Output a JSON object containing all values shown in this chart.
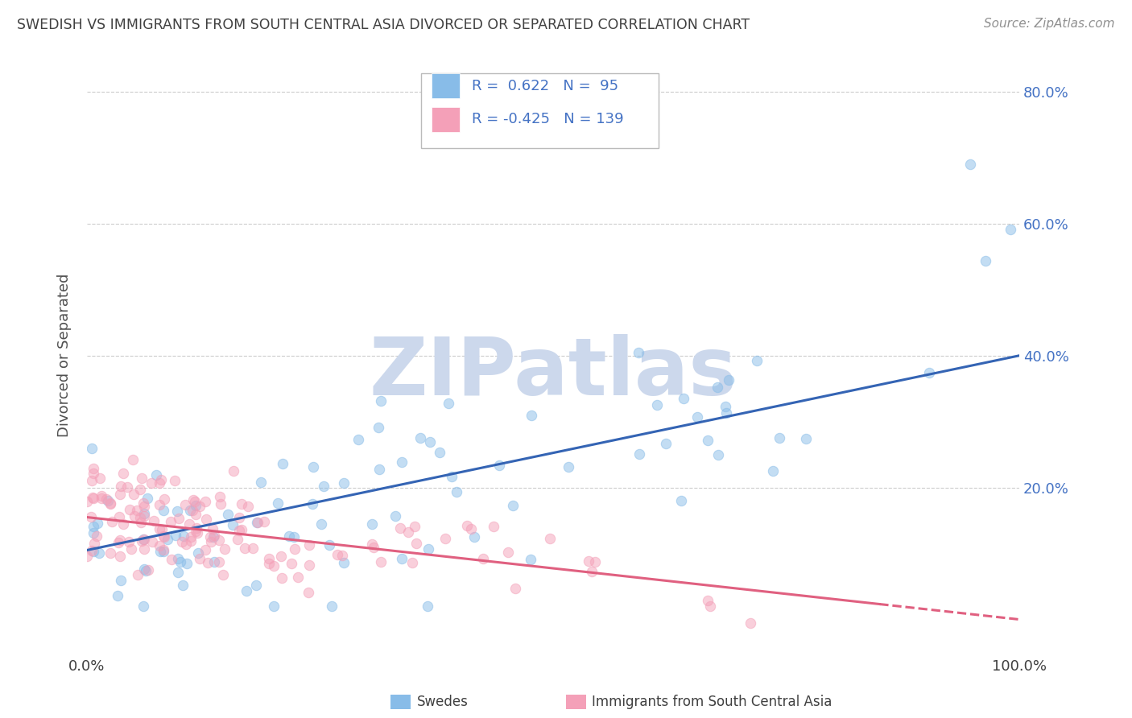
{
  "title": "SWEDISH VS IMMIGRANTS FROM SOUTH CENTRAL ASIA DIVORCED OR SEPARATED CORRELATION CHART",
  "source": "Source: ZipAtlas.com",
  "ylabel": "Divorced or Separated",
  "xlabel": "",
  "watermark": "ZIPatlas",
  "xlim": [
    0.0,
    1.0
  ],
  "ylim": [
    -0.05,
    0.85
  ],
  "yticks": [
    0.2,
    0.4,
    0.6,
    0.8
  ],
  "xticks": [
    0.0,
    1.0
  ],
  "xtick_labels": [
    "0.0%",
    "100.0%"
  ],
  "ytick_labels_right": [
    "20.0%",
    "40.0%",
    "60.0%",
    "80.0%"
  ],
  "swedes_R": 0.622,
  "swedes_N": 95,
  "immigrants_R": -0.425,
  "immigrants_N": 139,
  "blue_color": "#88bce8",
  "pink_color": "#f4a0b8",
  "blue_line_color": "#3464b4",
  "pink_line_color": "#e06080",
  "title_color": "#404040",
  "source_color": "#909090",
  "watermark_color": "#ccd8ec",
  "background_color": "#ffffff",
  "grid_color": "#cccccc",
  "right_ytick_color": "#4472c4",
  "blue_slope": 0.295,
  "blue_intercept": 0.105,
  "pink_slope": -0.155,
  "pink_intercept": 0.155
}
